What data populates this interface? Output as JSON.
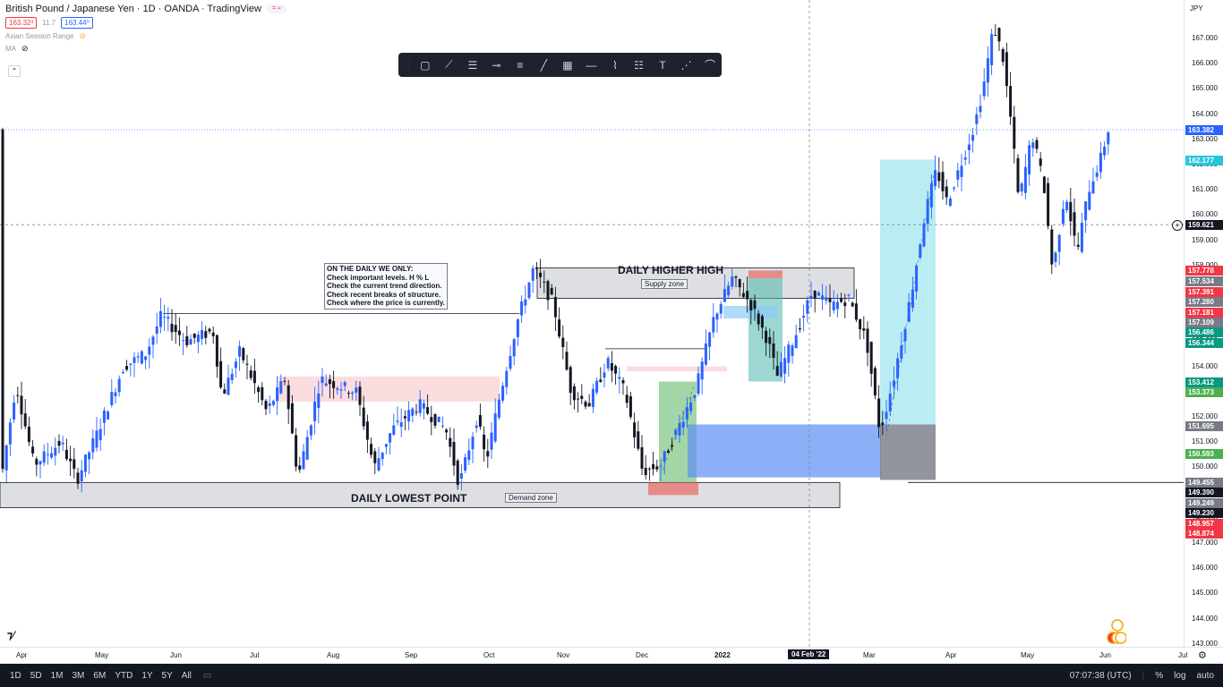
{
  "header": {
    "title": "British Pound / Japanese Yen · 1D · OANDA · TradingView",
    "bid": "163.32³",
    "spread": "11.7",
    "ask": "163.44⁰",
    "indicator_1": "Asian Session Range",
    "indicator_2": "MA"
  },
  "toolbar": {
    "tools": [
      "rectangle-icon",
      "trendline-icon",
      "long-position-icon",
      "horizontal-ray-icon",
      "fib-retracement-icon",
      "ray-icon",
      "grid-icon",
      "horizontal-line-icon",
      "path-icon",
      "parallel-channel-icon",
      "text-icon",
      "pattern-icon",
      "brush-icon"
    ]
  },
  "annotations": {
    "note_lines": [
      "ON THE DAILY WE ONLY:",
      "Check important levels. H % L",
      "Check the current trend direction.",
      "Check recent breaks of structure.",
      "Check where the price is currently."
    ],
    "higher_high_label": "DAILY HIGHER HIGH",
    "supply_zone": "Supply zone",
    "lowest_point_label": "DAILY LOWEST POINT",
    "demand_zone": "Demand zone"
  },
  "price_axis": {
    "currency": "JPY",
    "ticks": [
      "167.000",
      "166.000",
      "165.000",
      "164.000",
      "163.000",
      "162.000",
      "161.000",
      "160.000",
      "159.000",
      "158.000",
      "157.000",
      "156.000",
      "155.000",
      "154.000",
      "153.000",
      "152.000",
      "151.000",
      "150.000",
      "149.000",
      "148.000",
      "147.000",
      "146.000",
      "145.000",
      "144.000",
      "143.000"
    ],
    "badges": [
      {
        "text": "163.382",
        "color": "#2962ff"
      },
      {
        "text": "162.177",
        "color": "#26c6da"
      },
      {
        "text": "159.621",
        "color": "#131722"
      },
      {
        "text": "157.778",
        "color": "#f23645"
      },
      {
        "text": "157.534",
        "color": "#787b86"
      },
      {
        "text": "157.391",
        "color": "#f23645"
      },
      {
        "text": "157.280",
        "color": "#787b86"
      },
      {
        "text": "157.181",
        "color": "#f23645"
      },
      {
        "text": "157.109",
        "color": "#787b86"
      },
      {
        "text": "156.486",
        "color": "#089981"
      },
      {
        "text": "156.344",
        "color": "#089981"
      },
      {
        "text": "153.412",
        "color": "#089981"
      },
      {
        "text": "153.373",
        "color": "#4caf50"
      },
      {
        "text": "151.695",
        "color": "#787b86"
      },
      {
        "text": "150.593",
        "color": "#4caf50"
      },
      {
        "text": "149.455",
        "color": "#787b86"
      },
      {
        "text": "149.390",
        "color": "#131722"
      },
      {
        "text": "149.249",
        "color": "#787b86"
      },
      {
        "text": "149.230",
        "color": "#131722"
      },
      {
        "text": "148.957",
        "color": "#f23645"
      },
      {
        "text": "148.874",
        "color": "#f23645"
      }
    ]
  },
  "time_axis": {
    "labels": [
      "Apr",
      "May",
      "Jun",
      "Jul",
      "Aug",
      "Sep",
      "Oct",
      "Nov",
      "Dec",
      "2022",
      "04 Feb '22",
      "Mar",
      "Apr",
      "May",
      "Jun",
      "Jul"
    ]
  },
  "bottom_bar": {
    "ranges": [
      "1D",
      "5D",
      "1M",
      "3M",
      "6M",
      "YTD",
      "1Y",
      "5Y",
      "All"
    ],
    "clock": "07:07:38 (UTC)",
    "percent": "%",
    "log": "log",
    "auto": "auto"
  },
  "colors": {
    "up": "#2962ff",
    "down": "#131722",
    "background": "#ffffff"
  }
}
